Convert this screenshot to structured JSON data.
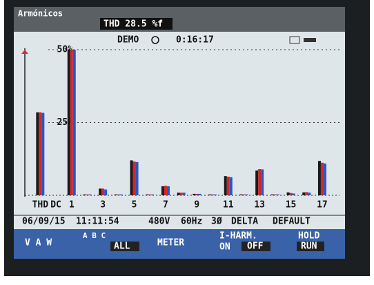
{
  "header": {
    "mode": "Armónicos",
    "thd": "THD 28.5 %f",
    "demo": "DEMO",
    "clock": "0:16:17"
  },
  "chart_data": {
    "type": "bar",
    "categories": [
      "THD",
      "DC",
      "1",
      null,
      "3",
      null,
      "5",
      null,
      "7",
      null,
      "9",
      null,
      "11",
      null,
      "13",
      null,
      "15",
      null,
      "17"
    ],
    "series": [
      {
        "color": "#1a1a1a",
        "values": [
          28.5,
          0,
          50,
          0.3,
          2.3,
          0.3,
          12,
          0.3,
          3.1,
          0.9,
          0.5,
          0.3,
          6.6,
          0.3,
          8.5,
          0.3,
          1,
          1,
          11.8
        ]
      },
      {
        "color": "#d0272b",
        "values": [
          28.5,
          0,
          50,
          0.3,
          2.3,
          0.3,
          11.6,
          0.3,
          3.3,
          0.9,
          0.5,
          0.3,
          6.4,
          0.3,
          9,
          0.3,
          0.8,
          1.1,
          11.2
        ]
      },
      {
        "color": "#2a55c8",
        "values": [
          28.3,
          0,
          50,
          0.3,
          2,
          0.3,
          11.4,
          0.3,
          3.1,
          0.9,
          0.5,
          0.3,
          6.2,
          0.3,
          8.9,
          0.3,
          0.6,
          0.9,
          10.9
        ]
      }
    ],
    "ylim": [
      0,
      50
    ],
    "yticks": [
      {
        "value": 25,
        "label": "25%"
      },
      {
        "value": 50,
        "label": "50%"
      }
    ],
    "grid": true
  },
  "status": {
    "date": "06/09/15",
    "time": "11:11:54",
    "voltage": "480V",
    "frequency": "60Hz",
    "phase": "3Ø",
    "topology": "DELTA",
    "limits": "DEFAULT"
  },
  "softkeys": {
    "vaw": "V A W",
    "abc": "A B C",
    "all": "ALL",
    "meter": "METER",
    "iharm": "I-HARM.",
    "on": "ON",
    "off": "OFF",
    "hold": "HOLD",
    "run": "RUN"
  }
}
